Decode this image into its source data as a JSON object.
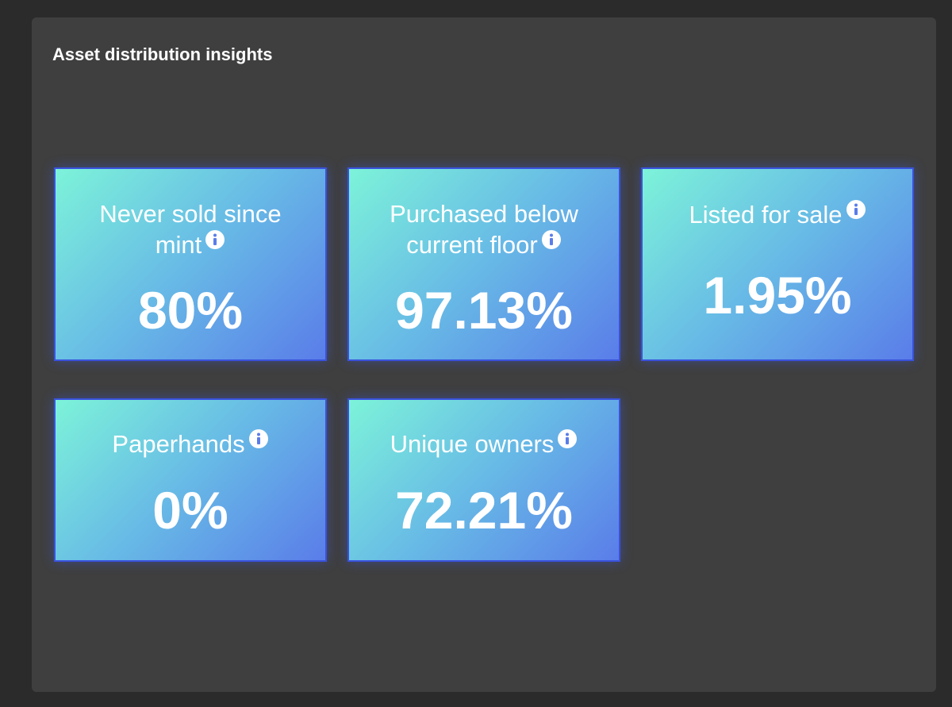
{
  "header": {
    "title": "Asset distribution insights"
  },
  "cards": [
    {
      "label": "Never sold since mint",
      "value": "80%"
    },
    {
      "label": "Purchased below current floor",
      "value": "97.13%"
    },
    {
      "label": "Listed for sale",
      "value": "1.95%"
    },
    {
      "label": "Paperhands",
      "value": "0%"
    },
    {
      "label": "Unique owners",
      "value": "72.21%"
    }
  ]
}
